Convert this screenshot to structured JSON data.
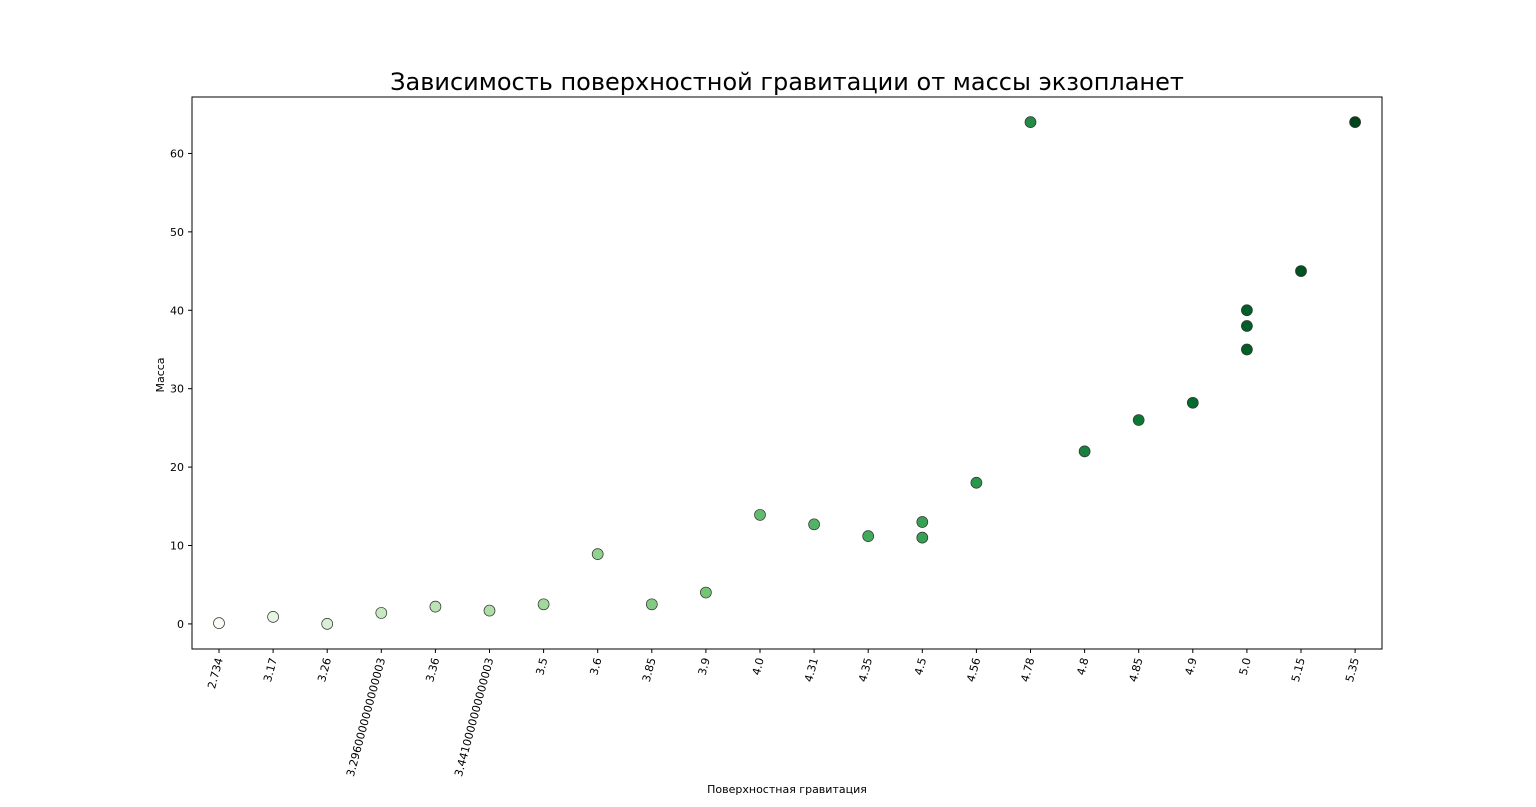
{
  "chart_data": {
    "type": "scatter",
    "title": "Зависимость поверхностной гравитации от массы экзопланет",
    "xlabel": "Поверхностная гравитация",
    "ylabel": "Масса",
    "x_axis_kind": "categorical",
    "categories": [
      "2.734",
      "3.17",
      "3.26",
      "3.2960000000000003",
      "3.36",
      "3.4410000000000003",
      "3.5",
      "3.6",
      "3.85",
      "3.9",
      "4.0",
      "4.31",
      "4.35",
      "4.5",
      "4.56",
      "4.78",
      "4.8",
      "4.85",
      "4.9",
      "5.0",
      "5.15",
      "5.35"
    ],
    "points": [
      {
        "x": "2.734",
        "y": 0.1
      },
      {
        "x": "3.17",
        "y": 0.9
      },
      {
        "x": "3.26",
        "y": 0.0
      },
      {
        "x": "3.2960000000000003",
        "y": 1.4
      },
      {
        "x": "3.36",
        "y": 2.2
      },
      {
        "x": "3.4410000000000003",
        "y": 1.7
      },
      {
        "x": "3.5",
        "y": 2.5
      },
      {
        "x": "3.6",
        "y": 8.9
      },
      {
        "x": "3.85",
        "y": 2.5
      },
      {
        "x": "3.9",
        "y": 4.0
      },
      {
        "x": "4.0",
        "y": 13.9
      },
      {
        "x": "4.31",
        "y": 12.7
      },
      {
        "x": "4.35",
        "y": 11.2
      },
      {
        "x": "4.5",
        "y": 13.0
      },
      {
        "x": "4.5",
        "y": 11.0
      },
      {
        "x": "4.56",
        "y": 18.0
      },
      {
        "x": "4.78",
        "y": 64.0
      },
      {
        "x": "4.8",
        "y": 22.0
      },
      {
        "x": "4.85",
        "y": 26.0
      },
      {
        "x": "4.9",
        "y": 28.2
      },
      {
        "x": "5.0",
        "y": 40.0
      },
      {
        "x": "5.0",
        "y": 38.0
      },
      {
        "x": "5.0",
        "y": 35.0
      },
      {
        "x": "5.15",
        "y": 45.0
      },
      {
        "x": "5.35",
        "y": 64.0
      }
    ],
    "y_ticks": [
      0,
      10,
      20,
      30,
      40,
      50,
      60
    ],
    "ylim": [
      -3.2,
      67.2
    ],
    "color_map": "greens",
    "color_encodes": "x",
    "grid": false,
    "legend": "none"
  }
}
